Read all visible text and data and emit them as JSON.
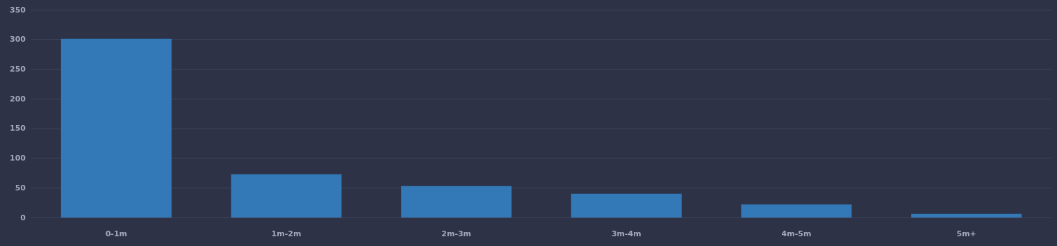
{
  "chart_data": {
    "type": "bar",
    "categories": [
      "0-1m",
      "1m-2m",
      "2m-3m",
      "3m-4m",
      "4m-5m",
      "5m+"
    ],
    "values": [
      301,
      73,
      53,
      40,
      22,
      6
    ],
    "color": "#3379b7",
    "ylim": [
      0,
      350
    ],
    "yticks": [
      0,
      50,
      100,
      150,
      200,
      250,
      300,
      350
    ],
    "grid": "y"
  }
}
